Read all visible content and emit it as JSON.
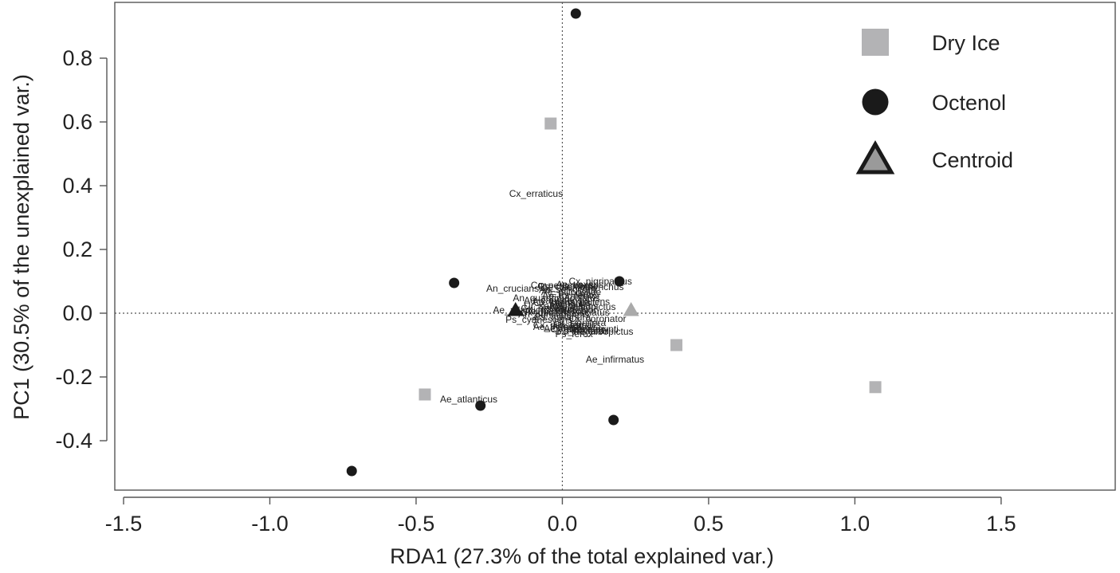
{
  "chart_data": {
    "type": "scatter",
    "xlabel": "RDA1 (27.3% of the total explained var.)",
    "ylabel": "PC1 (30.5% of the unexplained var.)",
    "xlim": [
      -1.53,
      1.89
    ],
    "ylim": [
      -0.555,
      0.975
    ],
    "x_ticks": [
      "-1.5",
      "-1.0",
      "-0.5",
      "0.0",
      "0.5",
      "1.0",
      "1.5"
    ],
    "x_tick_values": [
      -1.5,
      -1.0,
      -0.5,
      0.0,
      0.5,
      1.0,
      1.5
    ],
    "y_ticks": [
      "-0.4",
      "-0.2",
      "0.0",
      "0.2",
      "0.4",
      "0.6",
      "0.8"
    ],
    "y_tick_values": [
      -0.4,
      -0.2,
      0.0,
      0.2,
      0.4,
      0.6,
      0.8
    ],
    "reference_lines": {
      "x": 0.0,
      "y": 0.0,
      "style": "dotted"
    },
    "legend_position": "top-right",
    "legend": [
      {
        "label": "Dry Ice",
        "marker": "square",
        "color": "#b3b3b5"
      },
      {
        "label": "Octenol",
        "marker": "circle",
        "color": "#1a1a1a"
      },
      {
        "label": "Centroid",
        "marker": "triangle",
        "color": "#9a9a9a",
        "stroke": "#1a1a1a"
      }
    ],
    "series": [
      {
        "name": "Dry Ice",
        "marker": "square",
        "color": "#b3b3b5",
        "points": [
          {
            "x": -0.04,
            "y": 0.595
          },
          {
            "x": 0.39,
            "y": -0.1
          },
          {
            "x": 1.07,
            "y": -0.232
          },
          {
            "x": -0.47,
            "y": -0.255
          }
        ]
      },
      {
        "name": "Octenol",
        "marker": "circle",
        "color": "#1a1a1a",
        "points": [
          {
            "x": 0.046,
            "y": 0.94
          },
          {
            "x": -0.37,
            "y": 0.095
          },
          {
            "x": 0.195,
            "y": 0.1
          },
          {
            "x": -0.28,
            "y": -0.29
          },
          {
            "x": 0.175,
            "y": -0.335
          },
          {
            "x": -0.72,
            "y": -0.495
          }
        ]
      },
      {
        "name": "Centroid",
        "marker": "triangle",
        "points": [
          {
            "x": -0.16,
            "y": 0.01,
            "fill": "#1a1a1a"
          },
          {
            "x": 0.235,
            "y": 0.01,
            "fill": "#aaaaaa"
          }
        ]
      }
    ],
    "species_labels": [
      {
        "text": "Cx_erraticus",
        "x": -0.09,
        "y": 0.375
      },
      {
        "text": "Ae_infirmatus",
        "x": 0.18,
        "y": -0.145
      },
      {
        "text": "Ae_atlanticus",
        "x": -0.32,
        "y": -0.27
      },
      {
        "text": "An_crucians",
        "x": -0.17,
        "y": 0.077
      },
      {
        "text": "Cx_nigripalpus",
        "x": 0.13,
        "y": 0.1
      },
      {
        "text": "Cq_perturbans",
        "x": 0.0,
        "y": 0.088
      },
      {
        "text": "Ae_vexans",
        "x": 0.06,
        "y": 0.09
      },
      {
        "text": "Ps_columbiae",
        "x": 0.02,
        "y": 0.084
      },
      {
        "text": "Ae_sollicitans",
        "x": 0.02,
        "y": 0.074
      },
      {
        "text": "Ae_taeniorhynchus",
        "x": 0.07,
        "y": 0.083
      },
      {
        "text": "Ae_mitchellae",
        "x": 0.03,
        "y": 0.066
      },
      {
        "text": "Ps_ferox",
        "x": 0.05,
        "y": 0.058
      },
      {
        "text": "Ae_tormentor",
        "x": 0.03,
        "y": 0.055
      },
      {
        "text": "An_quadrimaculatus",
        "x": -0.02,
        "y": 0.047
      },
      {
        "text": "Ae_canadensis",
        "x": -0.02,
        "y": 0.04
      },
      {
        "text": "Cx_salinarius",
        "x": 0.0,
        "y": 0.032
      },
      {
        "text": "Ae_fulvus_pallens",
        "x": 0.03,
        "y": 0.036
      },
      {
        "text": "Ur_sapphirina",
        "x": -0.03,
        "y": 0.022
      },
      {
        "text": "Ma_titillans",
        "x": 0.04,
        "y": 0.022
      },
      {
        "text": "Ae_albopictus",
        "x": 0.08,
        "y": 0.02
      },
      {
        "text": "Cx_restuans",
        "x": -0.05,
        "y": 0.015
      },
      {
        "text": "Ae_atlanticus_tormentor",
        "x": -0.06,
        "y": 0.01
      },
      {
        "text": "Ae_hendersoni",
        "x": -0.02,
        "y": 0.006
      },
      {
        "text": "Cx_quinquefasciatus",
        "x": 0.01,
        "y": 0.002
      },
      {
        "text": "An_punctipennis",
        "x": -0.03,
        "y": -0.004
      },
      {
        "text": "Cs_melanura",
        "x": 0.0,
        "y": -0.012
      },
      {
        "text": "Ps_cyanescens",
        "x": -0.08,
        "y": -0.02
      },
      {
        "text": "Cx_coronator",
        "x": 0.12,
        "y": -0.018
      },
      {
        "text": "Or_signifera",
        "x": 0.06,
        "y": -0.03
      },
      {
        "text": "Cx_tarsalis",
        "x": 0.05,
        "y": -0.036
      },
      {
        "text": "Ae_triseriatus",
        "x": 0.0,
        "y": -0.042
      },
      {
        "text": "Ae_dupreei",
        "x": 0.02,
        "y": -0.048
      },
      {
        "text": "Cx_pilosus",
        "x": -0.02,
        "y": -0.038
      },
      {
        "text": "Cx_peccator",
        "x": 0.05,
        "y": -0.05
      },
      {
        "text": "Ps_howardii",
        "x": 0.07,
        "y": -0.055
      },
      {
        "text": "Ae_aegypti",
        "x": 0.11,
        "y": -0.05
      },
      {
        "text": "Ps_ferox",
        "x": 0.04,
        "y": -0.065
      },
      {
        "text": "Ae_albopictus",
        "x": 0.14,
        "y": -0.058
      }
    ]
  }
}
